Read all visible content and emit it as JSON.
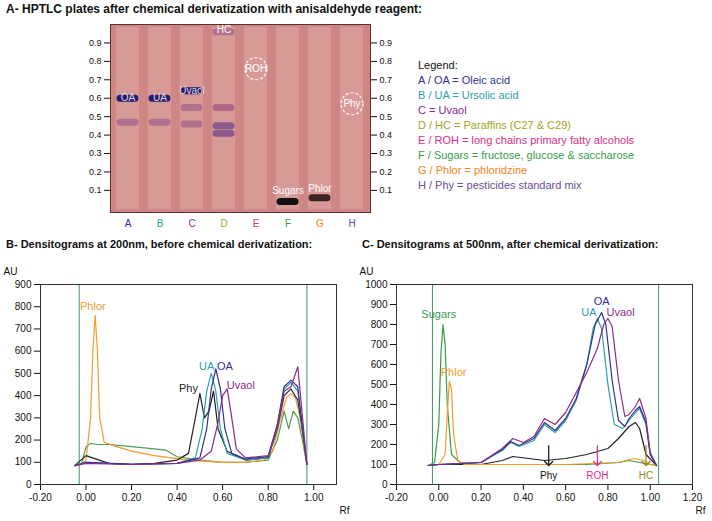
{
  "chart_data": [
    {
      "type": "plate",
      "title": "A- HPTLC plates after chemical derivatization with anisaldehyde reagent:",
      "categories": [
        "A",
        "B",
        "C",
        "D",
        "E",
        "F",
        "G",
        "H"
      ],
      "colors": [
        "#2e3192",
        "#2aa1a7",
        "#8b2a8e",
        "#a3a324",
        "#d62f8a",
        "#3a9a4a",
        "#f58220",
        "#6a4c9c"
      ],
      "ylim": [
        -0.02,
        1.0
      ],
      "yticks": [
        0.1,
        0.2,
        0.3,
        0.4,
        0.5,
        0.6,
        0.7,
        0.8,
        0.9
      ],
      "bands": [
        {
          "lane": "A",
          "rf": 0.6,
          "color": "#1f1f6b",
          "marker": "band"
        },
        {
          "lane": "A",
          "rf": 0.47,
          "color": "#b0708e",
          "marker": "band"
        },
        {
          "lane": "B",
          "rf": 0.6,
          "color": "#1f1f6b",
          "marker": "band"
        },
        {
          "lane": "B",
          "rf": 0.47,
          "color": "#b0708e",
          "marker": "band"
        },
        {
          "lane": "C",
          "rf": 0.64,
          "color": "#1f1f6b",
          "marker": "band"
        },
        {
          "lane": "C",
          "rf": 0.55,
          "color": "#b0708e",
          "marker": "band"
        },
        {
          "lane": "C",
          "rf": 0.46,
          "color": "#b0708e",
          "marker": "band"
        },
        {
          "lane": "D",
          "rf": 0.55,
          "color": "#b3688a",
          "marker": "band"
        },
        {
          "lane": "D",
          "rf": 0.45,
          "color": "#8a5a8a",
          "marker": "band"
        },
        {
          "lane": "D",
          "rf": 0.41,
          "color": "#8a5a8a",
          "marker": "band"
        },
        {
          "lane": "D",
          "rf": 0.96,
          "color": "#b0708e",
          "marker": "band"
        },
        {
          "lane": "E",
          "rf": 0.76,
          "color": "#ffffff",
          "marker": "dashed_ellipse"
        },
        {
          "lane": "F",
          "rf": 0.04,
          "color": "#111111",
          "marker": "band"
        },
        {
          "lane": "G",
          "rf": 0.06,
          "color": "#3a2424",
          "marker": "band"
        },
        {
          "lane": "H",
          "rf": 0.57,
          "color": "#ffffff",
          "marker": "dashed_ellipse"
        }
      ],
      "labels": [
        {
          "text": "OA",
          "lane": "A",
          "rf": 0.6,
          "color": "#e6d2e2"
        },
        {
          "text": "UA",
          "lane": "B",
          "rf": 0.6,
          "color": "#e6d2e2"
        },
        {
          "text": "Uvaol",
          "lane": "C",
          "rf": 0.64,
          "color": "#e6d2e2"
        },
        {
          "text": "HC",
          "lane": "D",
          "rf": 0.97,
          "color": "#ffffff"
        },
        {
          "text": "ROH",
          "lane": "E",
          "rf": 0.76,
          "color": "#ffffff"
        },
        {
          "text": "Sugars",
          "lane": "F",
          "rf": 0.1,
          "color": "#ffffff"
        },
        {
          "text": "Phlor",
          "lane": "G",
          "rf": 0.11,
          "color": "#ffffff"
        },
        {
          "text": "Phy",
          "lane": "H",
          "rf": 0.57,
          "color": "#ffffff"
        }
      ],
      "key": {
        "title": "Legend:",
        "items": [
          {
            "text": "A / OA = Oleic acid",
            "color": "#2e3192"
          },
          {
            "text": "B / UA = Ursolic acid",
            "color": "#2aa1a7"
          },
          {
            "text": "C = Uvaol",
            "color": "#8b2a8e"
          },
          {
            "text": "D / HC = Paraffins (C27 & C29)",
            "color": "#a3a324"
          },
          {
            "text": "E / ROH = long chains primary fatty alcohols",
            "color": "#d62f8a"
          },
          {
            "text": "F / Sugars = fructose, glucose & saccharose",
            "color": "#3a9a4a"
          },
          {
            "text": "G / Phlor = phloridzine",
            "color": "#f58220"
          },
          {
            "text": "H / Phy = pesticides standard mix",
            "color": "#6a4c9c"
          }
        ]
      }
    },
    {
      "type": "line",
      "title": "B- Densitograms at 200nm, before chemical derivatization:",
      "xlabel": "Rf",
      "ylabel": "AU",
      "xlim": [
        -0.2,
        1.1
      ],
      "xticks": [
        {
          "value": -0.2,
          "label": "-0.20"
        },
        {
          "value": 0,
          "label": "0.00"
        },
        {
          "value": 0.2,
          "label": "0.20"
        },
        {
          "value": 0.4,
          "label": "0.40"
        },
        {
          "value": 0.6,
          "label": "0.60"
        },
        {
          "value": 0.8,
          "label": "0.80"
        },
        {
          "value": 1,
          "label": "1.00"
        }
      ],
      "ylim": [
        0,
        900
      ],
      "yticks": [
        0,
        100,
        200,
        300,
        400,
        500,
        600,
        700,
        800,
        900
      ],
      "reference_lines": [
        {
          "x": -0.03,
          "color": "#3a9a5a"
        },
        {
          "x": 0.97,
          "color": "#3a9a5a"
        }
      ],
      "series": [
        {
          "color": "#4f9a55",
          "x": [
            -0.05,
            -0.02,
            0.0,
            0.02,
            0.05,
            0.1,
            0.2,
            0.3,
            0.35,
            0.4,
            0.5,
            0.6,
            0.7,
            0.8,
            0.84,
            0.87,
            0.89,
            0.91,
            0.93,
            0.95,
            0.97
          ],
          "values": [
            85,
            90,
            170,
            185,
            180,
            180,
            170,
            160,
            155,
            125,
            110,
            100,
            100,
            110,
            200,
            330,
            250,
            330,
            300,
            200,
            90
          ]
        },
        {
          "name": "Phlor",
          "color": "#f39c2a",
          "label_at": [
            0.03,
            800
          ],
          "x": [
            -0.05,
            -0.02,
            0.0,
            0.02,
            0.03,
            0.04,
            0.05,
            0.06,
            0.08,
            0.12,
            0.2,
            0.3,
            0.45,
            0.6,
            0.7,
            0.78,
            0.82,
            0.85,
            0.88,
            0.9,
            0.92,
            0.94,
            0.96,
            0.97
          ],
          "values": [
            85,
            90,
            110,
            300,
            600,
            760,
            600,
            300,
            190,
            175,
            150,
            130,
            110,
            100,
            100,
            110,
            150,
            280,
            390,
            410,
            390,
            300,
            150,
            90
          ]
        },
        {
          "name": "Phy",
          "color": "#222222",
          "label_at": [
            0.45,
            430
          ],
          "x": [
            -0.05,
            0.0,
            0.1,
            0.2,
            0.3,
            0.4,
            0.45,
            0.48,
            0.5,
            0.52,
            0.54,
            0.56,
            0.58,
            0.62,
            0.7,
            0.8,
            0.84,
            0.87,
            0.9,
            0.93,
            0.95,
            0.97
          ],
          "values": [
            85,
            130,
            95,
            90,
            95,
            110,
            140,
            300,
            410,
            300,
            330,
            420,
            250,
            150,
            110,
            120,
            250,
            400,
            430,
            380,
            250,
            90
          ]
        },
        {
          "name": "UA",
          "color": "#2aa1a7",
          "label_at": [
            0.53,
            530
          ],
          "x": [
            -0.05,
            0.0,
            0.2,
            0.4,
            0.48,
            0.51,
            0.53,
            0.55,
            0.57,
            0.59,
            0.62,
            0.7,
            0.8,
            0.84,
            0.87,
            0.9,
            0.93,
            0.95,
            0.97
          ],
          "values": [
            85,
            100,
            90,
            95,
            120,
            250,
            420,
            500,
            420,
            250,
            140,
            110,
            120,
            260,
            430,
            460,
            420,
            260,
            90
          ]
        },
        {
          "name": "OA",
          "color": "#2e3192",
          "label_at": [
            0.61,
            530
          ],
          "x": [
            -0.05,
            0.0,
            0.2,
            0.4,
            0.5,
            0.53,
            0.55,
            0.57,
            0.59,
            0.61,
            0.64,
            0.7,
            0.8,
            0.84,
            0.87,
            0.9,
            0.93,
            0.95,
            0.97
          ],
          "values": [
            85,
            100,
            92,
            95,
            120,
            250,
            430,
            520,
            430,
            250,
            140,
            115,
            125,
            270,
            440,
            470,
            440,
            260,
            90
          ]
        },
        {
          "name": "Uvaol",
          "color": "#8b2a8e",
          "label_at": [
            0.68,
            445
          ],
          "x": [
            -0.05,
            0.0,
            0.2,
            0.4,
            0.5,
            0.55,
            0.58,
            0.6,
            0.62,
            0.64,
            0.66,
            0.7,
            0.8,
            0.84,
            0.87,
            0.9,
            0.92,
            0.93,
            0.94,
            0.96,
            0.97
          ],
          "values": [
            85,
            95,
            90,
            95,
            110,
            150,
            280,
            400,
            430,
            300,
            160,
            120,
            130,
            260,
            420,
            440,
            500,
            530,
            420,
            200,
            90
          ]
        }
      ],
      "annotations": []
    },
    {
      "type": "line",
      "title": "C- Densitograms at 500nm, after chemical derivatization:",
      "xlabel": "Rf",
      "ylabel": "AU",
      "xlim": [
        -0.2,
        1.2
      ],
      "xticks": [
        {
          "value": -0.2,
          "label": "-0.20"
        },
        {
          "value": 0,
          "label": "0.00"
        },
        {
          "value": 0.2,
          "label": "0.20"
        },
        {
          "value": 0.4,
          "label": "0.40"
        },
        {
          "value": 0.6,
          "label": "0.60"
        },
        {
          "value": 0.8,
          "label": "0.80"
        },
        {
          "value": 1,
          "label": "1.00"
        },
        {
          "value": 1.2,
          "label": "1.20"
        }
      ],
      "ylim": [
        0,
        1000
      ],
      "yticks": [
        0,
        100,
        200,
        300,
        400,
        500,
        600,
        700,
        800,
        900,
        1000
      ],
      "reference_lines": [
        {
          "x": -0.03,
          "color": "#3a9a5a"
        },
        {
          "x": 1.04,
          "color": "#3a9a5a"
        }
      ],
      "series": [
        {
          "color": "#222222",
          "x": [
            -0.05,
            0.0,
            0.2,
            0.3,
            0.35,
            0.5,
            0.6,
            0.7,
            0.8,
            0.85,
            0.9,
            0.93,
            0.95,
            0.98,
            1.03
          ],
          "values": [
            95,
            100,
            100,
            120,
            140,
            120,
            130,
            150,
            180,
            230,
            290,
            310,
            280,
            150,
            95
          ]
        },
        {
          "name": "Sugars",
          "color": "#3a9a4a",
          "label_at": [
            0.0,
            850
          ],
          "x": [
            -0.05,
            -0.02,
            0.0,
            0.01,
            0.02,
            0.03,
            0.04,
            0.06,
            0.1,
            0.2,
            0.3,
            0.5,
            0.7,
            0.85,
            0.9,
            0.95,
            1.0,
            1.03
          ],
          "values": [
            95,
            110,
            300,
            650,
            800,
            700,
            400,
            150,
            110,
            100,
            100,
            100,
            100,
            110,
            120,
            110,
            100,
            95
          ]
        },
        {
          "name": "Phlor",
          "color": "#f39c2a",
          "label_at": [
            0.07,
            560
          ],
          "x": [
            -0.05,
            0.0,
            0.03,
            0.04,
            0.05,
            0.06,
            0.07,
            0.09,
            0.12,
            0.3,
            0.6,
            0.85,
            0.92,
            0.97,
            1.0,
            1.03
          ],
          "values": [
            95,
            100,
            150,
            350,
            515,
            480,
            250,
            120,
            100,
            100,
            100,
            110,
            130,
            120,
            100,
            95
          ]
        },
        {
          "name": "UA",
          "color": "#2aa1a7",
          "label_at": [
            0.71,
            860
          ],
          "x": [
            -0.05,
            0.0,
            0.2,
            0.3,
            0.34,
            0.38,
            0.45,
            0.5,
            0.55,
            0.6,
            0.65,
            0.7,
            0.73,
            0.75,
            0.77,
            0.8,
            0.83,
            0.87,
            0.9,
            0.93,
            0.95,
            0.98,
            1.0,
            1.03
          ],
          "values": [
            95,
            100,
            110,
            170,
            210,
            190,
            220,
            300,
            260,
            320,
            420,
            600,
            780,
            830,
            780,
            500,
            300,
            280,
            320,
            360,
            380,
            300,
            150,
            95
          ]
        },
        {
          "name": "OA",
          "color": "#2e3192",
          "label_at": [
            0.77,
            915
          ],
          "x": [
            -0.05,
            0.0,
            0.2,
            0.3,
            0.34,
            0.38,
            0.45,
            0.5,
            0.55,
            0.6,
            0.65,
            0.7,
            0.74,
            0.77,
            0.79,
            0.82,
            0.85,
            0.88,
            0.9,
            0.93,
            0.95,
            0.98,
            1.0,
            1.03
          ],
          "values": [
            95,
            100,
            110,
            175,
            215,
            195,
            230,
            310,
            270,
            330,
            430,
            600,
            800,
            860,
            800,
            520,
            320,
            290,
            330,
            370,
            390,
            310,
            150,
            95
          ]
        },
        {
          "name": "Uvaol",
          "color": "#8b2a8e",
          "label_at": [
            0.86,
            860
          ],
          "x": [
            -0.05,
            0.0,
            0.2,
            0.3,
            0.35,
            0.4,
            0.45,
            0.5,
            0.55,
            0.6,
            0.65,
            0.7,
            0.75,
            0.78,
            0.8,
            0.82,
            0.85,
            0.88,
            0.9,
            0.93,
            0.95,
            0.98,
            1.0,
            1.03
          ],
          "values": [
            95,
            100,
            110,
            180,
            230,
            210,
            240,
            330,
            300,
            360,
            460,
            560,
            680,
            800,
            830,
            790,
            520,
            340,
            350,
            390,
            430,
            330,
            160,
            95
          ]
        }
      ],
      "annotations": [
        {
          "text": "Phy",
          "x": 0.52,
          "y": 95,
          "color": "#111111",
          "marker": "arrow"
        },
        {
          "text": "ROH",
          "x": 0.75,
          "y": 95,
          "color": "#d62f8a",
          "marker": "arrow"
        },
        {
          "text": "HC",
          "x": 0.98,
          "y": 95,
          "color": "#8a8a1a",
          "marker": "arrow"
        }
      ]
    }
  ]
}
